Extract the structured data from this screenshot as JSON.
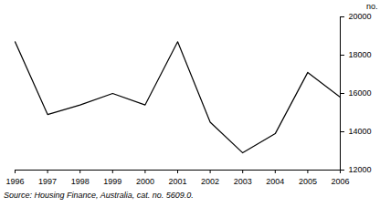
{
  "chart_data": {
    "type": "line",
    "y_label": "no.",
    "caption": "Source: Housing Finance, Australia, cat. no. 5609.0.",
    "x": [
      1996,
      1997,
      1998,
      1999,
      2000,
      2001,
      2002,
      2003,
      2004,
      2005,
      2006
    ],
    "values": [
      18700,
      14900,
      15400,
      16000,
      15400,
      18700,
      14500,
      12900,
      13900,
      17100,
      15800
    ],
    "color": "#000000",
    "xlim": [
      1996,
      2006
    ],
    "xticks": [
      1996,
      1997,
      1998,
      1999,
      2000,
      2001,
      2002,
      2003,
      2004,
      2005,
      2006
    ],
    "ylim": [
      12000,
      20000
    ],
    "yticks": [
      12000,
      14000,
      16000,
      18000,
      20000
    ],
    "grid": false
  }
}
